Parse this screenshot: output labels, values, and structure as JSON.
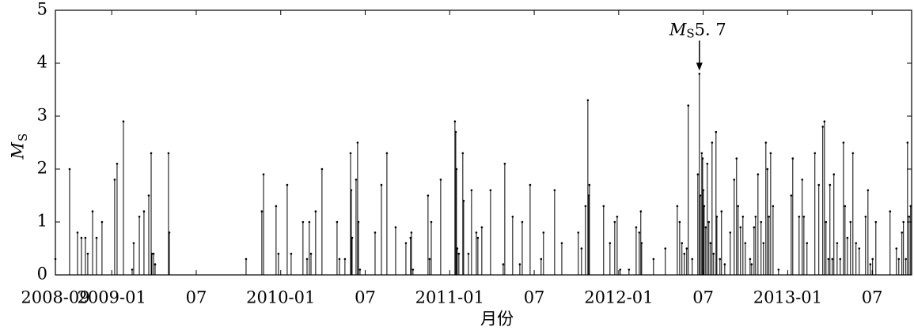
{
  "chart_data": {
    "type": "stem",
    "color": "#000000",
    "xlabel": "月份",
    "ylabel": {
      "main": "M",
      "sub": "S"
    },
    "annotation": {
      "main": "M",
      "sub": "S",
      "rest": "5. 7"
    },
    "xlim": [
      0,
      60.8
    ],
    "ylim": [
      0,
      5
    ],
    "xticks": [
      {
        "value": 0,
        "label": "2008-09"
      },
      {
        "value": 4,
        "label": "2009-01"
      },
      {
        "value": 10,
        "label": "07"
      },
      {
        "value": 16,
        "label": "2010-01"
      },
      {
        "value": 22,
        "label": "07"
      },
      {
        "value": 28,
        "label": "2011-01"
      },
      {
        "value": 34,
        "label": "07"
      },
      {
        "value": 40,
        "label": "2012-01"
      },
      {
        "value": 46,
        "label": "07"
      },
      {
        "value": 52,
        "label": "2013-01"
      },
      {
        "value": 58,
        "label": "07"
      }
    ],
    "yticks": [
      0,
      1,
      2,
      3,
      4,
      5
    ],
    "x": [
      0,
      1.01,
      1.57,
      1.85,
      2.13,
      2.3,
      2.64,
      2.92,
      3.31,
      4.21,
      4.38,
      4.83,
      5.45,
      5.56,
      5.96,
      6.29,
      6.63,
      6.8,
      6.85,
      6.97,
      7.08,
      8.03,
      8.09,
      13.54,
      14.66,
      14.78,
      15.67,
      15.84,
      16.46,
      16.74,
      17.58,
      17.87,
      18.03,
      18.15,
      18.48,
      18.93,
      20.0,
      20.17,
      20.56,
      20.96,
      21.01,
      21.07,
      21.35,
      21.46,
      21.52,
      21.63,
      22.7,
      23.15,
      23.54,
      24.16,
      24.89,
      25.22,
      25.28,
      25.39,
      26.46,
      26.57,
      26.69,
      27.36,
      28.37,
      28.43,
      28.48,
      28.54,
      28.65,
      28.93,
      28.99,
      29.33,
      29.55,
      29.89,
      30.0,
      30.28,
      30.9,
      31.8,
      31.91,
      32.47,
      32.98,
      33.15,
      33.71,
      34.49,
      34.66,
      35.45,
      35.96,
      37.13,
      37.36,
      37.64,
      37.81,
      37.87,
      37.92,
      38.93,
      39.38,
      39.72,
      39.89,
      40.11,
      40.73,
      41.24,
      41.46,
      41.57,
      41.63,
      42.47,
      43.31,
      44.16,
      44.33,
      44.49,
      44.66,
      44.83,
      44.94,
      45.22,
      45.62,
      45.73,
      45.79,
      45.9,
      45.96,
      46.01,
      46.07,
      46.18,
      46.29,
      46.4,
      46.52,
      46.63,
      46.74,
      46.91,
      46.97,
      47.19,
      47.3,
      47.53,
      47.92,
      48.2,
      48.37,
      48.48,
      48.65,
      48.82,
      48.99,
      49.33,
      49.44,
      49.61,
      49.72,
      49.89,
      50.11,
      50.28,
      50.45,
      50.56,
      50.67,
      50.79,
      50.96,
      51.35,
      52.25,
      52.36,
      52.81,
      53.03,
      53.15,
      53.37,
      53.93,
      54.21,
      54.49,
      54.61,
      54.72,
      54.89,
      55.0,
      55.17,
      55.28,
      55.51,
      55.73,
      55.96,
      56.07,
      56.24,
      56.46,
      56.63,
      56.85,
      57.08,
      57.53,
      57.7,
      57.87,
      58.03,
      58.26,
      59.27,
      59.72,
      59.89,
      60.11,
      60.22,
      60.39,
      60.51,
      60.62,
      60.73
    ],
    "values": [
      0.3,
      2.0,
      0.8,
      0.7,
      0.7,
      0.4,
      1.2,
      0.7,
      1.0,
      1.8,
      2.1,
      2.9,
      0.1,
      0.6,
      1.1,
      1.2,
      1.5,
      2.3,
      0.4,
      0.4,
      0.2,
      2.3,
      0.8,
      0.3,
      1.2,
      1.9,
      1.3,
      0.4,
      1.7,
      0.4,
      1.0,
      0.3,
      1.0,
      0.4,
      1.2,
      2.0,
      1.0,
      0.3,
      0.3,
      2.3,
      1.6,
      0.7,
      1.8,
      2.5,
      1.0,
      0.1,
      0.8,
      1.7,
      2.3,
      0.9,
      0.6,
      0.7,
      0.8,
      0.1,
      1.5,
      0.3,
      1.0,
      1.8,
      2.9,
      2.7,
      2.0,
      0.5,
      0.4,
      2.3,
      1.4,
      0.4,
      1.6,
      0.8,
      0.7,
      0.9,
      1.6,
      0.2,
      2.1,
      1.1,
      0.2,
      1.0,
      1.7,
      0.3,
      0.8,
      1.6,
      0.6,
      0.8,
      0.5,
      1.3,
      3.3,
      1.5,
      1.7,
      1.3,
      0.6,
      1.0,
      1.1,
      0.1,
      0.1,
      0.9,
      0.8,
      1.2,
      0.6,
      0.3,
      0.5,
      1.3,
      1.0,
      0.6,
      0.4,
      0.5,
      3.2,
      0.3,
      1.9,
      3.8,
      1.5,
      2.3,
      2.2,
      1.6,
      1.3,
      0.9,
      2.1,
      1.0,
      0.6,
      2.5,
      0.4,
      2.7,
      1.1,
      0.3,
      1.2,
      0.2,
      0.8,
      1.8,
      2.2,
      1.3,
      0.9,
      1.1,
      0.6,
      0.3,
      0.2,
      0.9,
      1.1,
      1.9,
      1.0,
      0.6,
      2.5,
      2.0,
      1.1,
      2.3,
      1.3,
      0.1,
      1.5,
      2.2,
      1.1,
      1.8,
      1.1,
      0.6,
      2.3,
      1.7,
      2.8,
      2.9,
      1.0,
      0.3,
      1.7,
      0.3,
      1.9,
      0.6,
      0.3,
      2.5,
      1.3,
      0.7,
      1.0,
      2.3,
      0.6,
      0.5,
      1.1,
      1.6,
      0.2,
      0.3,
      1.0,
      1.2,
      0.5,
      0.3,
      0.8,
      1.0,
      0.3,
      2.5,
      1.1,
      1.3
    ]
  }
}
